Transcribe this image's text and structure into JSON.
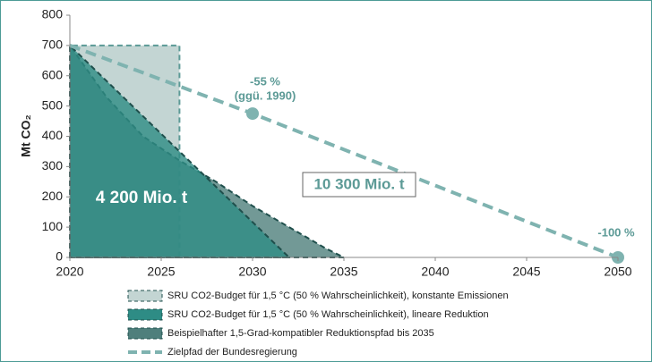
{
  "chart_data": {
    "type": "area",
    "y_label": "Mt CO₂",
    "xlim": [
      2020,
      2050
    ],
    "xticks": [
      2020,
      2025,
      2030,
      2035,
      2040,
      2045,
      2050
    ],
    "ylim": [
      0,
      800
    ],
    "yticks": [
      0,
      100,
      200,
      300,
      400,
      500,
      600,
      700,
      800
    ],
    "grid": false,
    "series": [
      {
        "name": "SRU CO2-Budget für 1,5 °C (50 % Wahrscheinlichkeit), konstante Emissionen",
        "type": "area",
        "color": "#c3d5d3",
        "x": [
          2020,
          2026
        ],
        "values": [
          700,
          700
        ]
      },
      {
        "name": "Beispielhafter 1,5-Grad-kompatibler Reduktionspfad bis 2035",
        "type": "area",
        "color": "#4f7f7c",
        "x": [
          2020,
          2022,
          2024,
          2026,
          2028,
          2029,
          2030,
          2032,
          2034,
          2035
        ],
        "values": [
          700,
          530,
          400,
          320,
          250,
          210,
          170,
          100,
          30,
          0
        ]
      },
      {
        "name": "SRU CO2-Budget für 1,5 °C (50 % Wahrscheinlichkeit), lineare Reduktion",
        "type": "area",
        "color": "#2e8c85",
        "x": [
          2020,
          2032
        ],
        "values": [
          700,
          0
        ]
      },
      {
        "name": "Zielpfad der Bundesregierung",
        "type": "line",
        "color": "#7fb3b0",
        "x": [
          2020,
          2030,
          2050
        ],
        "values": [
          700,
          475,
          0
        ]
      }
    ],
    "annotations": [
      "-55 %",
      "(ggü. 1990)",
      "-100 %",
      "4 200 Mio. t",
      "10 300 Mio. t"
    ]
  }
}
